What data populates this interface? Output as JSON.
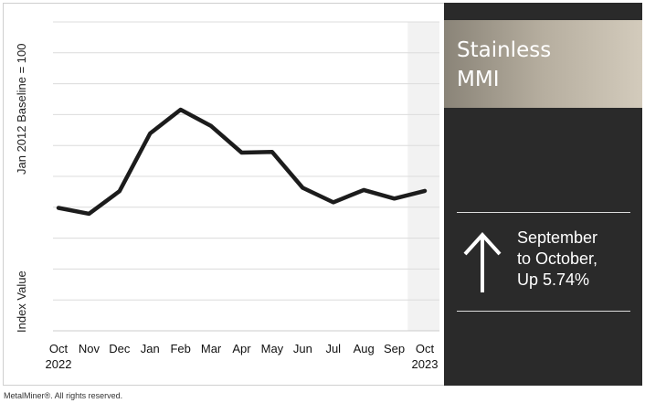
{
  "chart_data": {
    "type": "line",
    "categories": [
      "Oct",
      "Nov",
      "Dec",
      "Jan",
      "Feb",
      "Mar",
      "Apr",
      "May",
      "Jun",
      "Jul",
      "Aug",
      "Sep",
      "Oct"
    ],
    "year_labels": [
      "2022",
      "",
      "",
      "",
      "",
      "",
      "",
      "",
      "",
      "",
      "",
      "",
      "2023"
    ],
    "values": [
      39.8,
      37.9,
      45.2,
      63.9,
      71.6,
      66.3,
      57.7,
      57.9,
      46.3,
      41.6,
      45.6,
      42.8,
      45.3
    ],
    "ylim": [
      0,
      100
    ],
    "grid": true,
    "ylabel_top": "Jan 2012 Baseline = 100",
    "ylabel_bottom": "Index Value",
    "line_color": "#1c1c1c",
    "highlight_category": "Oct 2023",
    "highlight_color": "#f2f2f2"
  },
  "panel": {
    "title_line1": "Stainless",
    "title_line2": "MMI",
    "change_line1": "September",
    "change_line2": "to October,",
    "change_line3": "Up 5.74%",
    "arrow_icon": "up-arrow-icon",
    "background": "#2a2a2a"
  },
  "footer": {
    "copyright": "MetalMiner®. All rights reserved."
  }
}
